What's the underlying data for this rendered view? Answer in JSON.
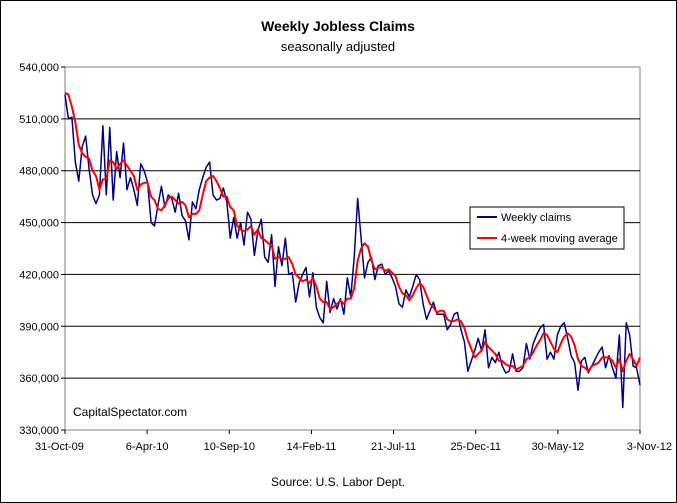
{
  "chart_data": {
    "type": "line",
    "title": "Weekly Jobless Claims",
    "subtitle": "seasonally adjusted",
    "source": "Source: U.S. Labor Dept.",
    "annotation": "CapitalSpectator.com",
    "xlabel": "",
    "ylabel": "",
    "ylim": [
      330000,
      540000
    ],
    "y_ticks": [
      330000,
      360000,
      390000,
      420000,
      450000,
      480000,
      510000,
      540000
    ],
    "y_tick_labels": [
      "330,000",
      "360,000",
      "390,000",
      "420,000",
      "450,000",
      "480,000",
      "510,000",
      "540,000"
    ],
    "x_tick_labels": [
      "31-Oct-09",
      "6-Apr-10",
      "10-Sep-10",
      "14-Feb-11",
      "21-Jul-11",
      "25-Dec-11",
      "30-May-12",
      "3-Nov-12"
    ],
    "grid": true,
    "legend_position": "right",
    "colors": {
      "weekly": "#000080",
      "moving_average": "#ff0000",
      "plot_background": "#ffffff"
    },
    "series": [
      {
        "name": "Weekly claims",
        "values": [
          524000,
          510000,
          511000,
          485000,
          474000,
          494000,
          500000,
          481000,
          466000,
          461000,
          466000,
          506000,
          466000,
          505000,
          463000,
          491000,
          476000,
          496000,
          469000,
          476000,
          469000,
          460000,
          484000,
          480000,
          473000,
          450000,
          448000,
          460000,
          471000,
          459000,
          466000,
          464000,
          456000,
          467000,
          454000,
          451000,
          440000,
          462000,
          458000,
          469000,
          476000,
          482000,
          485000,
          466000,
          463000,
          464000,
          470000,
          462000,
          441000,
          453000,
          441000,
          450000,
          437000,
          456000,
          452000,
          431000,
          445000,
          452000,
          430000,
          427000,
          443000,
          413000,
          436000,
          425000,
          441000,
          420000,
          421000,
          404000,
          415000,
          420000,
          424000,
          407000,
          421000,
          401000,
          395000,
          392000,
          416000,
          398000,
          406000,
          400000,
          406000,
          397000,
          418000,
          407000,
          430000,
          464000,
          441000,
          418000,
          427000,
          430000,
          417000,
          425000,
          426000,
          420000,
          422000,
          418000,
          413000,
          403000,
          401000,
          411000,
          407000,
          413000,
          420000,
          417000,
          403000,
          394000,
          399000,
          404000,
          397000,
          397000,
          397000,
          388000,
          391000,
          397000,
          398000,
          388000,
          381000,
          364000,
          370000,
          376000,
          383000,
          376000,
          388000,
          366000,
          372000,
          369000,
          375000,
          367000,
          363000,
          364000,
          374000,
          364000,
          364000,
          366000,
          380000,
          371000,
          380000,
          385000,
          389000,
          391000,
          371000,
          375000,
          371000,
          385000,
          390000,
          392000,
          383000,
          373000,
          369000,
          353000,
          370000,
          372000,
          363000,
          367000,
          371000,
          375000,
          378000,
          366000,
          373000,
          366000,
          360000,
          385000,
          343000,
          392000,
          385000,
          367000,
          366000,
          356000
        ]
      },
      {
        "name": "4-week moving average",
        "values": [
          525000,
          524000,
          517000,
          508000,
          495000,
          490000,
          488000,
          487000,
          480000,
          477000,
          469000,
          475000,
          475000,
          486000,
          485000,
          481000,
          484000,
          486000,
          483000,
          480000,
          477000,
          469000,
          472000,
          473000,
          473000,
          465000,
          463000,
          458000,
          457000,
          460000,
          464000,
          465000,
          463000,
          461000,
          462000,
          460000,
          453000,
          455000,
          455000,
          457000,
          466000,
          474000,
          476000,
          477000,
          474000,
          470000,
          465000,
          465000,
          459000,
          457000,
          448000,
          446000,
          445000,
          446000,
          448000,
          443000,
          446000,
          441000,
          440000,
          438000,
          437000,
          429000,
          430000,
          429000,
          429000,
          430000,
          426000,
          420000,
          418000,
          416000,
          417000,
          415000,
          418000,
          413000,
          406000,
          404000,
          404000,
          400000,
          401000,
          403000,
          405000,
          403000,
          406000,
          406000,
          412000,
          428000,
          435000,
          438000,
          436000,
          428000,
          423000,
          424000,
          424000,
          422000,
          423000,
          421000,
          419000,
          413000,
          409000,
          408000,
          405000,
          408000,
          412000,
          415000,
          413000,
          408000,
          403000,
          401000,
          398000,
          399000,
          399000,
          394000,
          393000,
          393000,
          394000,
          393000,
          389000,
          382000,
          377000,
          372000,
          374000,
          376000,
          381000,
          378000,
          376000,
          374000,
          370000,
          370000,
          368000,
          367000,
          367000,
          365000,
          366000,
          367000,
          371000,
          372000,
          375000,
          379000,
          382000,
          386000,
          385000,
          381000,
          377000,
          375000,
          380000,
          384000,
          386000,
          384000,
          379000,
          371000,
          367000,
          366000,
          364000,
          367000,
          368000,
          369000,
          372000,
          372000,
          372000,
          370000,
          366000,
          371000,
          364000,
          370000,
          374000,
          371000,
          367000,
          372000
        ]
      }
    ]
  }
}
